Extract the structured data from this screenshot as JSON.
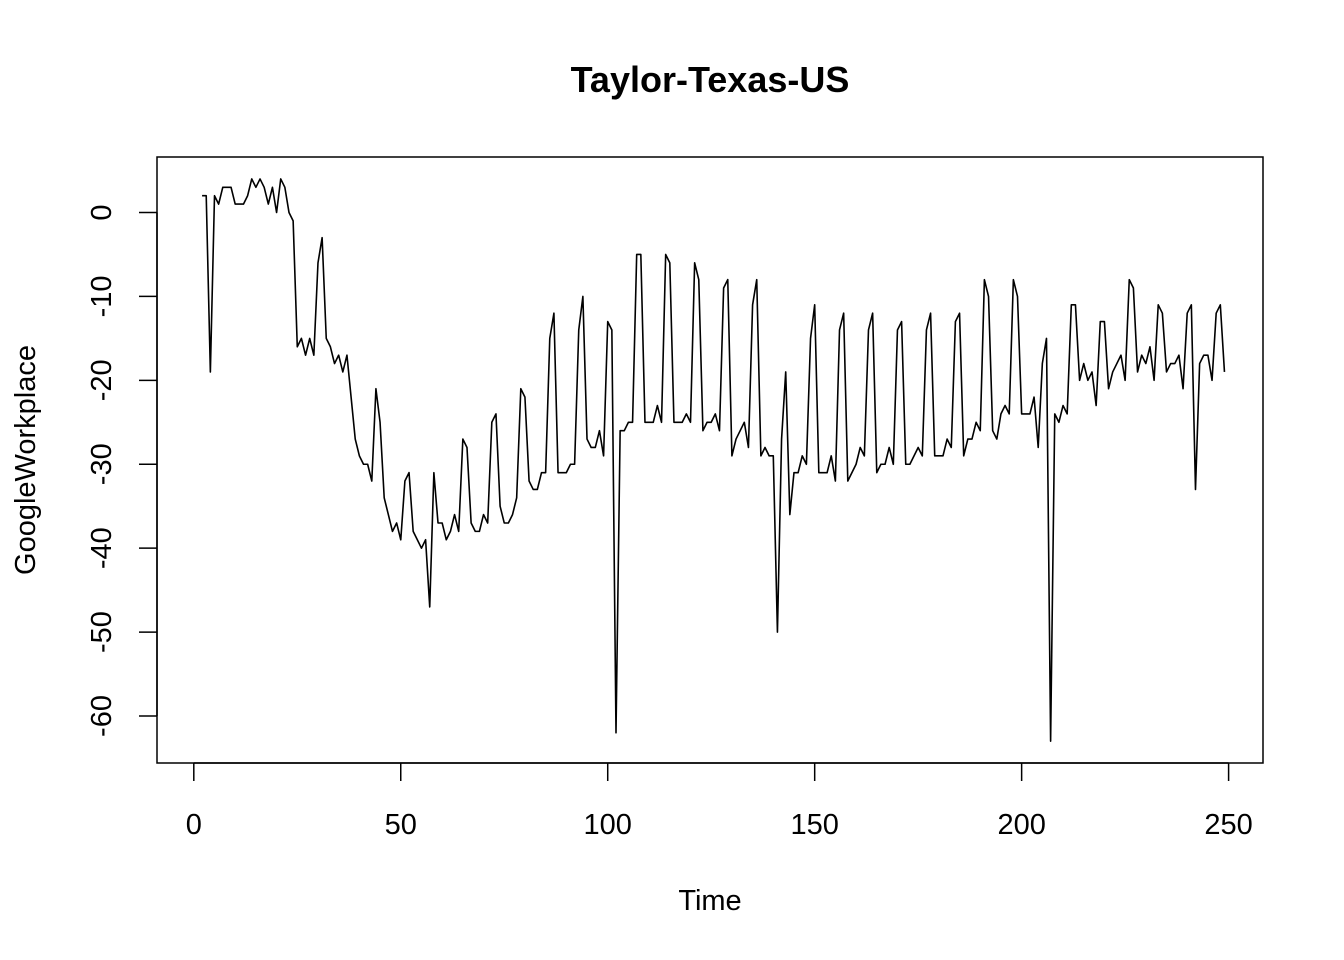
{
  "chart_data": {
    "type": "line",
    "title": "Taylor-Texas-US",
    "xlabel": "Time",
    "ylabel": "GoogleWorkplace",
    "xlim": [
      1,
      248
    ],
    "ylim": [
      -63,
      4
    ],
    "xticks": [
      0,
      50,
      100,
      150,
      200,
      250
    ],
    "yticks": [
      0,
      -10,
      -20,
      -30,
      -40,
      -50,
      -60
    ],
    "xtick_labels": [
      "0",
      "50",
      "100",
      "150",
      "200",
      "250"
    ],
    "ytick_labels": [
      "0",
      "-10",
      "-20",
      "-30",
      "-40",
      "-50",
      "-60"
    ],
    "grid": false,
    "legend": "none",
    "line_color": "#000000",
    "series": [
      {
        "x_start": 2,
        "values": [
          2,
          2,
          -19,
          2,
          1,
          3,
          3,
          3,
          1,
          1,
          1,
          2,
          4,
          3,
          4,
          3,
          1,
          3,
          0,
          4,
          3,
          0,
          -1,
          -16,
          -15,
          -17,
          -15,
          -17,
          -6,
          -3,
          -15,
          -16,
          -18,
          -17,
          -19,
          -17,
          -22,
          -27,
          -29,
          -30,
          -30,
          -32,
          -21,
          -25,
          -34,
          -36,
          -38,
          -37,
          -39,
          -32,
          -31,
          -38,
          -39,
          -40,
          -39,
          -47,
          -31,
          -37,
          -37,
          -39,
          -38,
          -36,
          -38,
          -27,
          -28,
          -37,
          -38,
          -38,
          -36,
          -37,
          -25,
          -24,
          -35,
          -37,
          -37,
          -36,
          -34,
          -21,
          -22,
          -32,
          -33,
          -33,
          -31,
          -31,
          -15,
          -12,
          -31,
          -31,
          -31,
          -30,
          -30,
          -14,
          -10,
          -27,
          -28,
          -28,
          -26,
          -29,
          -13,
          -14,
          -62,
          -26,
          -26,
          -25,
          -25,
          -5,
          -5,
          -25,
          -25,
          -25,
          -23,
          -25,
          -5,
          -6,
          -25,
          -25,
          -25,
          -24,
          -25,
          -6,
          -8,
          -26,
          -25,
          -25,
          -24,
          -26,
          -9,
          -8,
          -29,
          -27,
          -26,
          -25,
          -28,
          -11,
          -8,
          -29,
          -28,
          -29,
          -29,
          -50,
          -27,
          -19,
          -36,
          -31,
          -31,
          -29,
          -30,
          -15,
          -11,
          -31,
          -31,
          -31,
          -29,
          -32,
          -14,
          -12,
          -32,
          -31,
          -30,
          -28,
          -29,
          -14,
          -12,
          -31,
          -30,
          -30,
          -28,
          -30,
          -14,
          -13,
          -30,
          -30,
          -29,
          -28,
          -29,
          -14,
          -12,
          -29,
          -29,
          -29,
          -27,
          -28,
          -13,
          -12,
          -29,
          -27,
          -27,
          -25,
          -26,
          -8,
          -10,
          -26,
          -27,
          -24,
          -23,
          -24,
          -8,
          -10,
          -24,
          -24,
          -24,
          -22,
          -28,
          -18,
          -15,
          -63,
          -24,
          -25,
          -23,
          -24,
          -11,
          -11,
          -20,
          -18,
          -20,
          -19,
          -23,
          -13,
          -13,
          -21,
          -19,
          -18,
          -17,
          -20,
          -8,
          -9,
          -19,
          -17,
          -18,
          -16,
          -20,
          -11,
          -12,
          -19,
          -18,
          -18,
          -17,
          -21,
          -12,
          -11,
          -33,
          -18,
          -17,
          -17,
          -20,
          -12,
          -11,
          -19
        ]
      }
    ]
  }
}
